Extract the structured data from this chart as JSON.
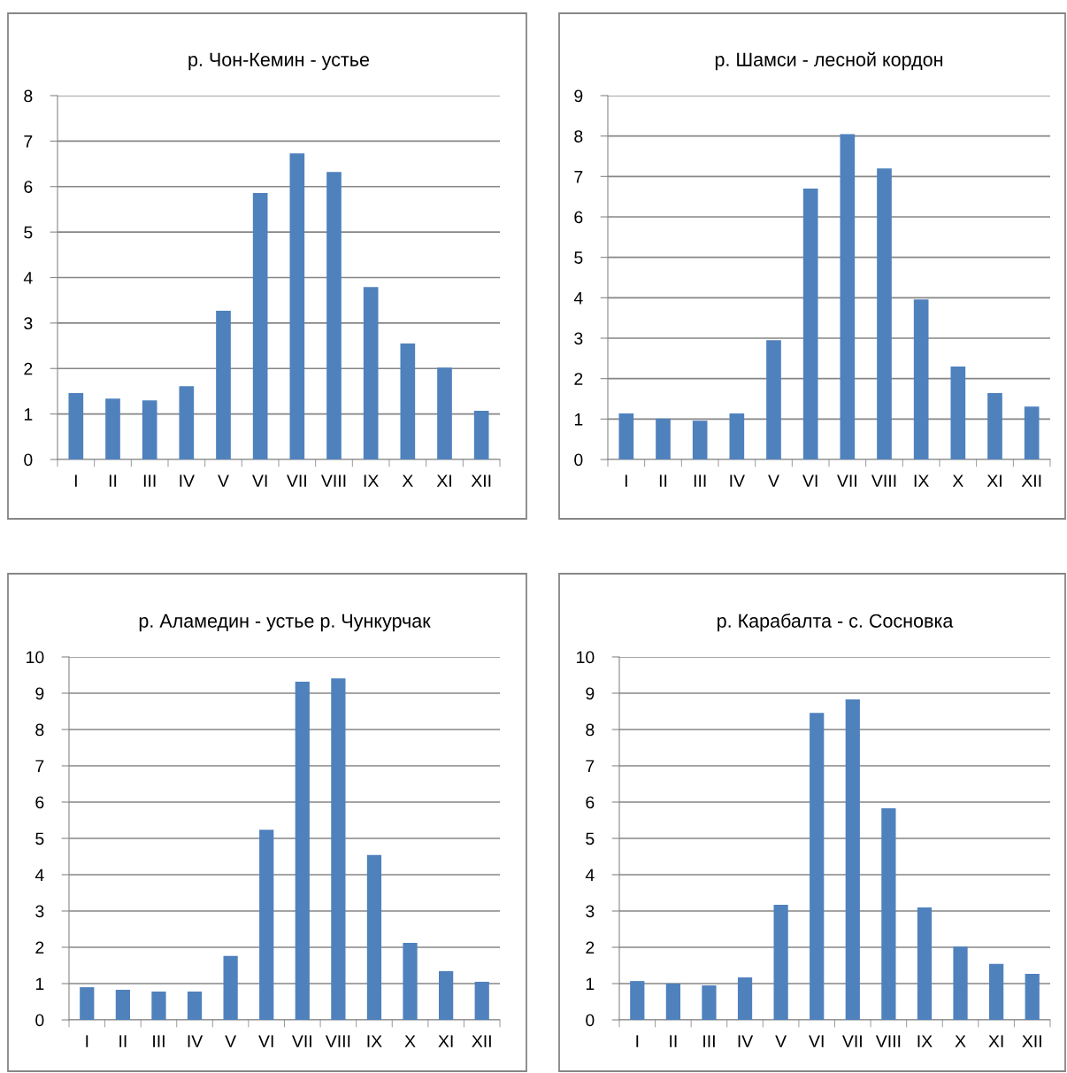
{
  "chart_data": [
    {
      "type": "bar",
      "title": "р. Чон-Кемин - устье",
      "categories": [
        "I",
        "II",
        "III",
        "IV",
        "V",
        "VI",
        "VII",
        "VIII",
        "IX",
        "X",
        "XI",
        "XII"
      ],
      "color": "#4f81bd",
      "values": [
        1.46,
        1.34,
        1.3,
        1.61,
        3.27,
        5.86,
        6.73,
        6.32,
        3.79,
        2.55,
        2.02,
        1.07
      ],
      "ylim": [
        0,
        8
      ],
      "yticks": [
        0,
        1,
        2,
        3,
        4,
        5,
        6,
        7,
        8
      ],
      "grid": "y"
    },
    {
      "type": "bar",
      "title": "р. Шамси - лесной кордон",
      "categories": [
        "I",
        "II",
        "III",
        "IV",
        "V",
        "VI",
        "VII",
        "VIII",
        "IX",
        "X",
        "XI",
        "XII"
      ],
      "color": "#4f81bd",
      "values": [
        1.14,
        1.01,
        0.96,
        1.14,
        2.95,
        6.7,
        8.05,
        7.2,
        3.96,
        2.3,
        1.64,
        1.31
      ],
      "ylim": [
        0,
        9
      ],
      "yticks": [
        0,
        1,
        2,
        3,
        4,
        5,
        6,
        7,
        8,
        9
      ],
      "grid": "y"
    },
    {
      "type": "bar",
      "title": "р. Аламедин - устье р. Чункурчак",
      "categories": [
        "I",
        "II",
        "III",
        "IV",
        "V",
        "VI",
        "VII",
        "VIII",
        "IX",
        "X",
        "XI",
        "XII"
      ],
      "color": "#4f81bd",
      "values": [
        0.9,
        0.83,
        0.78,
        0.78,
        1.76,
        5.24,
        9.32,
        9.41,
        4.54,
        2.12,
        1.34,
        1.05
      ],
      "ylim": [
        0,
        10
      ],
      "yticks": [
        0,
        1,
        2,
        3,
        4,
        5,
        6,
        7,
        8,
        9,
        10
      ],
      "grid": "y"
    },
    {
      "type": "bar",
      "title": "р. Карабалта - с. Сосновка",
      "categories": [
        "I",
        "II",
        "III",
        "IV",
        "V",
        "VI",
        "VII",
        "VIII",
        "IX",
        "X",
        "XI",
        "XII"
      ],
      "color": "#4f81bd",
      "values": [
        1.07,
        1.0,
        0.95,
        1.17,
        3.17,
        8.46,
        8.83,
        5.83,
        3.1,
        2.02,
        1.54,
        1.27
      ],
      "ylim": [
        0,
        10
      ],
      "yticks": [
        0,
        1,
        2,
        3,
        4,
        5,
        6,
        7,
        8,
        9,
        10
      ],
      "grid": "y"
    }
  ]
}
